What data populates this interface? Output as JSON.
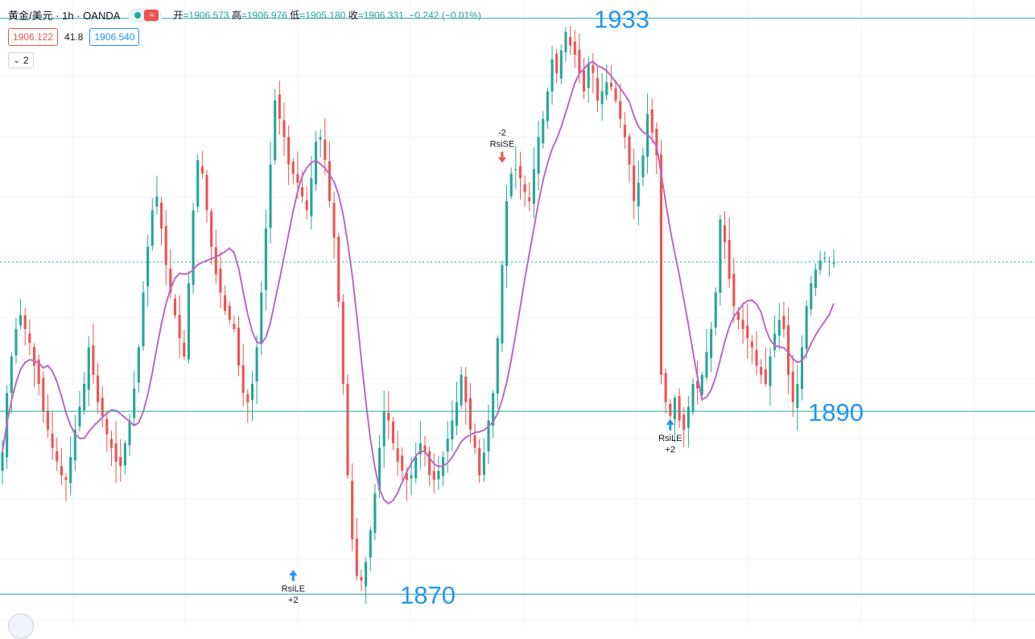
{
  "header": {
    "symbol": "黄金/美元 · 1h · OANDA",
    "open_label": "开",
    "open": "=1906.573",
    "high_label": "高",
    "high": "=1906.976",
    "low_label": "低",
    "low": "=1905.180",
    "close_label": "收",
    "close": "=1906.331",
    "change": "−0.242 (−0.01%)",
    "live_icon": "live-dot-icon",
    "wave_icon": "wave-icon"
  },
  "quote": {
    "bid": "1906.122",
    "spread": "41.8",
    "ask": "1906.540"
  },
  "indicators_toggle": {
    "count": "2",
    "icon": "chevron-down-icon"
  },
  "colors": {
    "up": "#26a69a",
    "down": "#ef5350",
    "ma": "#ba68c8",
    "trendline": "#2196f3",
    "horizontal": "#26a69a"
  },
  "chart_data": {
    "type": "candlestick",
    "ylim": [
      1866.5,
      1935.0
    ],
    "horizontal_levels": [
      {
        "value": 1933,
        "label": "1933"
      },
      {
        "value": 1890,
        "label": "1890"
      },
      {
        "value": 1870,
        "label": "1870"
      }
    ],
    "current_price": 1906.33,
    "signals": [
      {
        "index": 64,
        "type": "RsiLE",
        "qty": "+2",
        "price": 1873.0
      },
      {
        "index": 110,
        "type": "RsiSE",
        "qty": "-2",
        "price": 1917.0
      },
      {
        "index": 147,
        "type": "RsiLE",
        "qty": "+2",
        "price": 1889.5
      }
    ],
    "closes": [
      1885.5,
      1892.0,
      1896.0,
      1899.0,
      1900.5,
      1899.0,
      1897.5,
      1895.0,
      1893.0,
      1890.0,
      1888.0,
      1886.0,
      1884.5,
      1883.0,
      1882.5,
      1885.0,
      1888.0,
      1890.5,
      1893.0,
      1897.0,
      1894.0,
      1891.0,
      1889.5,
      1887.5,
      1886.0,
      1884.5,
      1884.0,
      1886.5,
      1889.0,
      1892.5,
      1897.0,
      1903.0,
      1908.0,
      1912.0,
      1913.5,
      1910.0,
      1906.0,
      1903.0,
      1900.5,
      1898.0,
      1896.0,
      1904.0,
      1912.0,
      1917.5,
      1916.0,
      1912.0,
      1908.0,
      1905.0,
      1903.0,
      1901.0,
      1900.0,
      1899.0,
      1895.0,
      1892.0,
      1891.0,
      1893.0,
      1897.0,
      1903.0,
      1910.0,
      1917.0,
      1924.0,
      1922.0,
      1920.0,
      1917.0,
      1916.0,
      1915.0,
      1913.5,
      1912.0,
      1915.5,
      1919.5,
      1920.0,
      1917.5,
      1913.0,
      1909.0,
      1902.0,
      1893.0,
      1883.0,
      1876.0,
      1872.0,
      1871.5,
      1873.5,
      1877.0,
      1881.0,
      1886.0,
      1890.0,
      1889.0,
      1886.5,
      1884.5,
      1883.5,
      1882.5,
      1883.0,
      1885.0,
      1886.5,
      1885.5,
      1883.0,
      1882.5,
      1883.5,
      1885.0,
      1887.0,
      1889.0,
      1891.0,
      1894.0,
      1891.0,
      1888.0,
      1886.0,
      1883.0,
      1885.5,
      1889.0,
      1892.0,
      1898.0,
      1906.0,
      1913.0,
      1916.0,
      1916.5,
      1915.5,
      1914.0,
      1913.0,
      1916.5,
      1920.0,
      1922.0,
      1925.0,
      1928.5,
      1927.0,
      1929.5,
      1931.5,
      1930.0,
      1929.0,
      1927.0,
      1925.0,
      1928.0,
      1927.0,
      1924.0,
      1925.0,
      1926.0,
      1925.5,
      1924.0,
      1922.0,
      1920.0,
      1917.0,
      1913.0,
      1915.0,
      1918.0,
      1922.5,
      1920.5,
      1918.0,
      1894.0,
      1891.0,
      1889.5,
      1891.5,
      1889.0,
      1888.0,
      1890.5,
      1893.0,
      1892.5,
      1894.0,
      1896.5,
      1899.0,
      1903.0,
      1911.0,
      1908.5,
      1904.5,
      1901.5,
      1900.0,
      1899.0,
      1898.0,
      1897.0,
      1895.0,
      1894.0,
      1893.0,
      1896.0,
      1898.5,
      1900.0,
      1899.0,
      1894.0,
      1891.0,
      1893.0,
      1897.0,
      1901.5,
      1904.0,
      1905.5,
      1906.5,
      1906.8,
      1906.4,
      1906.3
    ]
  }
}
